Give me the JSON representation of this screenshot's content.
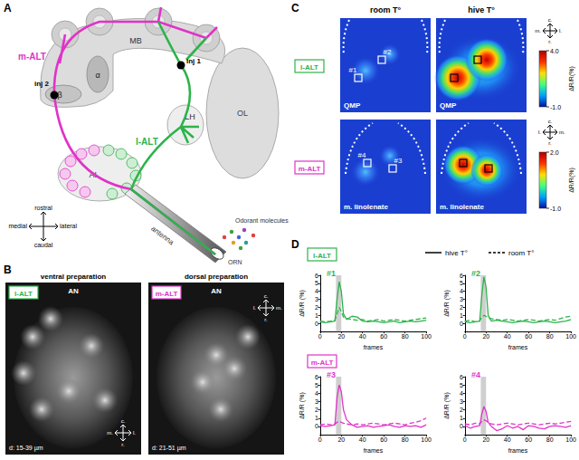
{
  "panels": {
    "A": {
      "label": "A",
      "regions": {
        "mb": "MB",
        "alpha": "α",
        "beta": "β",
        "lh": "LH",
        "ol": "OL",
        "al": "AL",
        "antenna": "antenna",
        "orn": "ORN"
      },
      "tracts": {
        "medial": "m-ALT",
        "lateral": "l-ALT"
      },
      "injections": [
        "inj 1",
        "inj 2"
      ],
      "odorants": "Odorant molecules",
      "compass": {
        "up": "rostral",
        "down": "caudal",
        "left": "medial",
        "right": "lateral"
      }
    },
    "B": {
      "label": "B",
      "images": [
        {
          "title": "ventral preparation",
          "tract": "l-ALT",
          "nerve": "AN",
          "depth": "d: 15-39 µm",
          "compass": {
            "up": "c.",
            "down": "r.",
            "left": "m.",
            "right": "l."
          }
        },
        {
          "title": "dorsal preparation",
          "tract": "m-ALT",
          "nerve": "AN",
          "depth": "d: 21-51 µm",
          "compass": {
            "up": "c.",
            "down": "r.",
            "left": "l.",
            "right": "m."
          }
        }
      ]
    },
    "C": {
      "label": "C",
      "columns": [
        "room T°",
        "hive T°"
      ],
      "rows": [
        {
          "tract": "l-ALT",
          "odor": "QMP",
          "rois": [
            "#1",
            "#2"
          ],
          "colorbar": {
            "range": [
              -1,
              4
            ],
            "ticks": [
              {
                "value": 4,
                "label": "4.0"
              },
              {
                "value": -1,
                "label": "-1.0"
              }
            ],
            "label": "ΔR/R(%)"
          },
          "compass": {
            "up": "c.",
            "down": "r.",
            "left": "m.",
            "right": "l."
          }
        },
        {
          "tract": "m-ALT",
          "odor": "m. linolenate",
          "rois": [
            "#4",
            "#3"
          ],
          "colorbar": {
            "range": [
              -1,
              2
            ],
            "ticks": [
              {
                "value": 2,
                "label": "2.0"
              },
              {
                "value": -1,
                "label": "-1.0"
              }
            ],
            "label": "ΔR/R(%)"
          },
          "compass": {
            "up": "c.",
            "down": "r.",
            "left": "l.",
            "right": "m."
          }
        }
      ]
    },
    "D": {
      "label": "D",
      "groups": [
        "l-ALT",
        "m-ALT"
      ]
    }
  },
  "chart_data": [
    {
      "type": "line",
      "title": "#1",
      "x_label": "frames",
      "y_label": "ΔR/R (%)",
      "x": [
        0,
        5,
        10,
        14,
        16,
        18,
        20,
        22,
        25,
        30,
        35,
        40,
        45,
        50,
        55,
        60,
        65,
        70,
        75,
        80,
        85,
        90,
        95,
        100
      ],
      "xlim": [
        0,
        100
      ],
      "xticks": [
        0,
        20,
        40,
        60,
        80,
        100
      ],
      "ylim": [
        -1,
        6
      ],
      "yticks": [
        0,
        1,
        2,
        3,
        4,
        5,
        6
      ],
      "grid": false,
      "stimulus": [
        15,
        20
      ],
      "series": [
        {
          "name": "hive T°",
          "color": "#2db34a",
          "line_style": "solid",
          "values": [
            0.2,
            0.1,
            0.2,
            0.3,
            3.0,
            5.2,
            4.0,
            1.2,
            0.5,
            0.9,
            0.8,
            0.3,
            0.2,
            0.3,
            0.2,
            0.1,
            0.2,
            0.3,
            0.1,
            0.2,
            0.3,
            0.2,
            0.3,
            0.4
          ]
        },
        {
          "name": "room T°",
          "color": "#2db34a",
          "line_style": "dashed",
          "values": [
            0.3,
            0.2,
            0.3,
            0.4,
            1.2,
            2.0,
            1.5,
            0.8,
            0.6,
            0.5,
            0.4,
            0.5,
            0.3,
            0.4,
            0.5,
            0.3,
            0.4,
            0.5,
            0.4,
            0.3,
            0.4,
            0.5,
            0.6,
            0.7
          ]
        }
      ]
    },
    {
      "type": "line",
      "title": "#2",
      "x_label": "frames",
      "y_label": "ΔR/R (%)",
      "x": [
        0,
        5,
        10,
        14,
        16,
        18,
        20,
        22,
        25,
        30,
        35,
        40,
        45,
        50,
        55,
        60,
        65,
        70,
        75,
        80,
        85,
        90,
        95,
        100
      ],
      "xlim": [
        0,
        100
      ],
      "xticks": [
        0,
        20,
        40,
        60,
        80,
        100
      ],
      "ylim": [
        -1,
        6
      ],
      "yticks": [
        0,
        1,
        2,
        3,
        4,
        5,
        6
      ],
      "grid": false,
      "stimulus": [
        15,
        20
      ],
      "series": [
        {
          "name": "hive T°",
          "color": "#2db34a",
          "line_style": "solid",
          "values": [
            0.2,
            0.1,
            0.2,
            0.3,
            3.5,
            5.8,
            4.5,
            1.0,
            0.3,
            0.4,
            0.3,
            0.2,
            0.1,
            0.2,
            0.3,
            0.2,
            0.1,
            0.2,
            0.3,
            0.2,
            0.1,
            0.2,
            0.3,
            0.5
          ]
        },
        {
          "name": "room T°",
          "color": "#2db34a",
          "line_style": "dashed",
          "values": [
            0.3,
            0.4,
            0.2,
            0.3,
            0.8,
            1.0,
            0.9,
            0.7,
            0.6,
            0.5,
            0.4,
            0.5,
            0.4,
            0.3,
            0.4,
            0.5,
            0.4,
            0.3,
            0.4,
            0.5,
            0.4,
            0.6,
            0.8,
            0.9
          ]
        }
      ]
    },
    {
      "type": "line",
      "title": "#3",
      "x_label": "frames",
      "y_label": "ΔR/R (%)",
      "x": [
        0,
        5,
        10,
        14,
        16,
        18,
        20,
        22,
        25,
        30,
        35,
        40,
        45,
        50,
        55,
        60,
        65,
        70,
        75,
        80,
        85,
        90,
        95,
        100
      ],
      "xlim": [
        0,
        100
      ],
      "xticks": [
        0,
        20,
        40,
        60,
        80,
        100
      ],
      "ylim": [
        -1,
        6
      ],
      "yticks": [
        0,
        1,
        2,
        3,
        4,
        5,
        6
      ],
      "grid": false,
      "stimulus": [
        15,
        20
      ],
      "series": [
        {
          "name": "hive T°",
          "color": "#e033c8",
          "line_style": "solid",
          "values": [
            0.1,
            0.0,
            0.1,
            0.2,
            3.5,
            5.0,
            4.2,
            2.0,
            0.8,
            0.2,
            -0.1,
            0.0,
            0.1,
            -0.1,
            0.0,
            0.1,
            0.2,
            0.0,
            -0.1,
            0.1,
            0.0,
            0.1,
            -0.1,
            0.2
          ]
        },
        {
          "name": "room T°",
          "color": "#e033c8",
          "line_style": "dashed",
          "values": [
            0.2,
            0.3,
            0.2,
            0.3,
            0.5,
            0.6,
            0.5,
            0.4,
            0.3,
            0.2,
            0.3,
            0.2,
            0.3,
            0.4,
            0.3,
            0.2,
            0.3,
            0.4,
            0.3,
            0.2,
            0.4,
            0.5,
            0.7,
            1.0
          ]
        }
      ]
    },
    {
      "type": "line",
      "title": "#4",
      "x_label": "frames",
      "y_label": "ΔR/R (%)",
      "x": [
        0,
        5,
        10,
        14,
        16,
        18,
        20,
        22,
        25,
        30,
        35,
        40,
        45,
        50,
        55,
        60,
        65,
        70,
        75,
        80,
        85,
        90,
        95,
        100
      ],
      "xlim": [
        0,
        100
      ],
      "xticks": [
        0,
        20,
        40,
        60,
        80,
        100
      ],
      "ylim": [
        -1,
        6
      ],
      "yticks": [
        0,
        1,
        2,
        3,
        4,
        5,
        6
      ],
      "grid": false,
      "stimulus": [
        15,
        20
      ],
      "series": [
        {
          "name": "hive T°",
          "color": "#e033c8",
          "line_style": "solid",
          "values": [
            0.1,
            -0.2,
            0.0,
            0.1,
            1.5,
            2.4,
            1.8,
            0.5,
            0.0,
            -0.5,
            -0.3,
            0.1,
            -0.2,
            0.0,
            -0.4,
            0.1,
            0.0,
            -0.2,
            -0.3,
            0.0,
            0.1,
            0.0,
            -0.1,
            0.1
          ]
        },
        {
          "name": "room T°",
          "color": "#e033c8",
          "line_style": "dashed",
          "values": [
            0.3,
            0.2,
            0.4,
            0.3,
            0.6,
            0.8,
            0.7,
            0.5,
            0.3,
            0.2,
            0.3,
            0.4,
            0.3,
            0.2,
            0.3,
            0.4,
            0.3,
            0.2,
            0.3,
            0.4,
            0.3,
            0.4,
            0.5,
            0.6
          ]
        }
      ]
    }
  ]
}
